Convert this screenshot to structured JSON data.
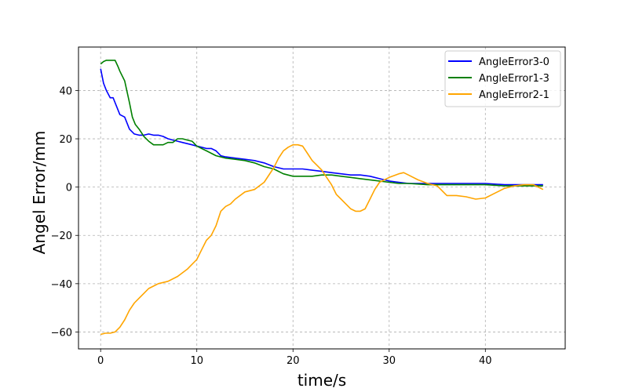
{
  "chart_data": {
    "type": "line",
    "xlabel": "time/s",
    "ylabel": "Angel Error/mm",
    "xlim": [
      -2.3,
      48.3
    ],
    "ylim": [
      -67,
      58
    ],
    "xticks": [
      0,
      10,
      20,
      30,
      40
    ],
    "yticks": [
      -60,
      -40,
      -20,
      0,
      20,
      40
    ],
    "grid": true,
    "legend_position": "top-right",
    "series": [
      {
        "name": "AngleError3-0",
        "color": "#0000ff",
        "x": [
          0,
          0.3,
          0.6,
          1.0,
          1.3,
          1.6,
          2.0,
          2.5,
          3.0,
          3.5,
          4.0,
          4.5,
          5.0,
          5.5,
          6.0,
          6.5,
          7.0,
          7.5,
          8.0,
          8.5,
          9.0,
          9.5,
          10.0,
          10.5,
          11.0,
          11.5,
          12.0,
          12.5,
          13.0,
          14.0,
          15.0,
          16.0,
          17.0,
          18.0,
          19.0,
          20.0,
          21.0,
          22.0,
          23.0,
          24.0,
          25.0,
          26.0,
          27.0,
          28.0,
          29.0,
          30.0,
          31.0,
          32.0,
          33.0,
          34.0,
          36.0,
          38.0,
          40.0,
          42.0,
          44.0,
          46.0
        ],
        "values": [
          49,
          43,
          40,
          37,
          37,
          34,
          30,
          29,
          24,
          22,
          21.5,
          21.5,
          22,
          21.5,
          21.5,
          21,
          20,
          19.5,
          19,
          18.5,
          18,
          17.5,
          17,
          16.5,
          16,
          16,
          15,
          13,
          12.5,
          12,
          11.5,
          11,
          10,
          8.5,
          7.5,
          7.5,
          7.5,
          7,
          6.5,
          6,
          5.5,
          5,
          5,
          4.5,
          3.5,
          2.5,
          2,
          1.5,
          1.5,
          1.5,
          1.5,
          1.5,
          1.5,
          1,
          1,
          1
        ]
      },
      {
        "name": "AngleError1-3",
        "color": "#008000",
        "x": [
          0,
          0.3,
          0.6,
          1.0,
          1.5,
          1.8,
          2.0,
          2.5,
          3.0,
          3.3,
          3.6,
          4.0,
          4.5,
          5.0,
          5.5,
          6.0,
          6.5,
          7.0,
          7.5,
          8.0,
          8.5,
          9.0,
          9.5,
          10.0,
          10.5,
          11.0,
          11.5,
          12.0,
          13.0,
          14.0,
          15.0,
          16.0,
          17.0,
          18.0,
          19.0,
          20.0,
          21.0,
          22.0,
          23.0,
          24.0,
          25.0,
          26.0,
          27.0,
          28.0,
          29.0,
          30.0,
          31.0,
          32.0,
          34.0,
          36.0,
          38.0,
          40.0,
          42.0,
          44.0,
          46.0
        ],
        "values": [
          51,
          52,
          52.5,
          52.5,
          52.5,
          50,
          48,
          44,
          35,
          29,
          26,
          24,
          21,
          19,
          17.5,
          17.5,
          17.5,
          18.5,
          18.5,
          20,
          20,
          19.5,
          19,
          17,
          16,
          15,
          14,
          13,
          12,
          11.5,
          11,
          10,
          8.5,
          7.5,
          5.5,
          4.5,
          4.5,
          4.5,
          5,
          5,
          4.5,
          4,
          3.5,
          3,
          2.5,
          2,
          1.5,
          1.5,
          1,
          1,
          1,
          1,
          0.5,
          0.5,
          0.5
        ]
      },
      {
        "name": "AngleError2-1",
        "color": "#ffa500",
        "x": [
          0,
          0.5,
          1.0,
          1.5,
          2.0,
          2.5,
          3.0,
          3.5,
          4.0,
          4.5,
          5.0,
          5.5,
          6.0,
          7.0,
          8.0,
          9.0,
          9.5,
          10.0,
          10.5,
          11.0,
          11.5,
          12.0,
          12.5,
          13.0,
          13.5,
          14.0,
          15.0,
          16.0,
          17.0,
          18.0,
          18.5,
          19.0,
          19.5,
          20.0,
          20.5,
          21.0,
          21.5,
          22.0,
          22.5,
          23.0,
          23.5,
          24.0,
          24.5,
          25.0,
          25.5,
          26.0,
          26.5,
          27.0,
          27.5,
          28.0,
          28.5,
          29.0,
          30.0,
          31.0,
          31.5,
          32.0,
          33.0,
          34.0,
          35.0,
          36.0,
          37.0,
          38.0,
          39.0,
          40.0,
          41.0,
          42.0,
          43.0,
          44.0,
          45.0,
          46.0
        ],
        "values": [
          -61,
          -60.5,
          -60.5,
          -60,
          -58,
          -55,
          -51,
          -48,
          -46,
          -44,
          -42,
          -41,
          -40,
          -39,
          -37,
          -34,
          -32,
          -30,
          -26,
          -22,
          -20,
          -16,
          -10,
          -8,
          -7,
          -5,
          -2,
          -1,
          2,
          8,
          12,
          15,
          16.5,
          17.5,
          17.5,
          17,
          14,
          11,
          9,
          7,
          4,
          1,
          -3,
          -5,
          -7,
          -9,
          -10,
          -10,
          -9,
          -5,
          -1,
          2,
          4,
          5.5,
          6,
          5,
          3,
          1.5,
          0.5,
          -3.5,
          -3.5,
          -4,
          -5,
          -4.5,
          -2.5,
          -0.5,
          0.5,
          1,
          1,
          -1
        ]
      }
    ]
  }
}
